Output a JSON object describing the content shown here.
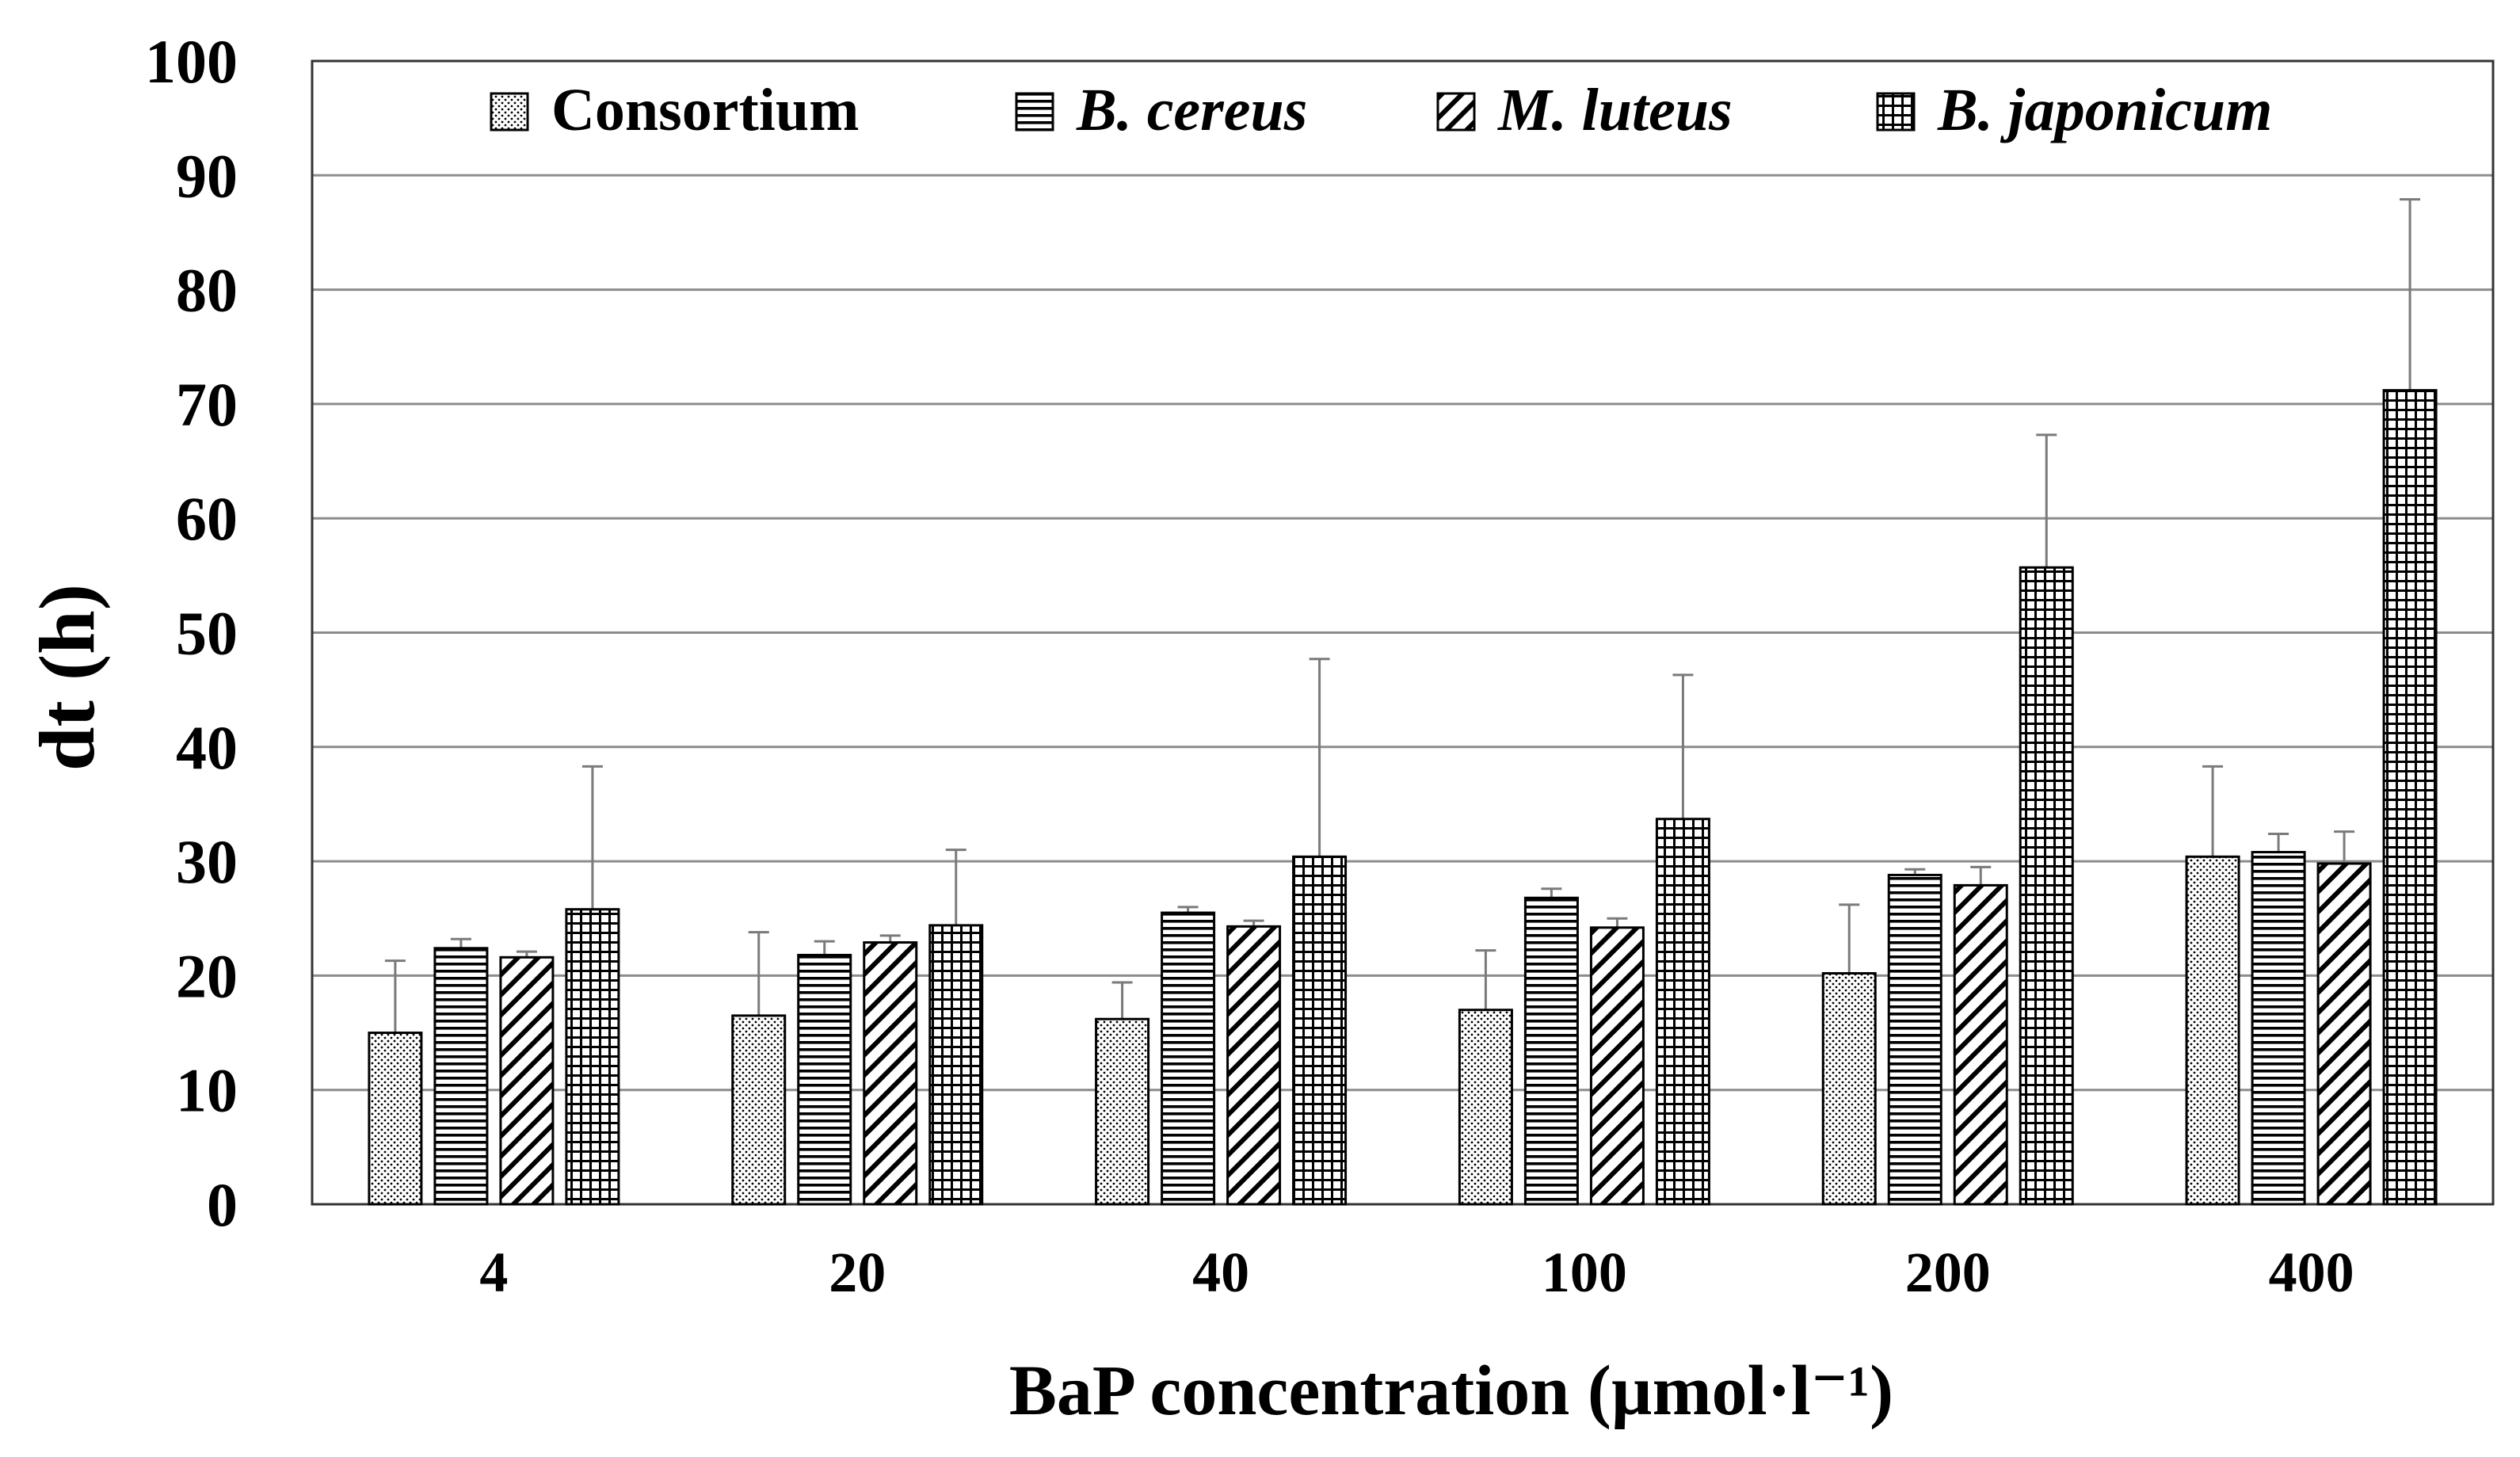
{
  "chart_data": {
    "type": "bar",
    "title": "",
    "xlabel": "BaP concentration (µmol·l⁻¹)",
    "ylabel": "dt (h)",
    "ylim": [
      0,
      100
    ],
    "yticks": [
      "0",
      "10",
      "20",
      "30",
      "40",
      "50",
      "60",
      "70",
      "80",
      "90",
      "100"
    ],
    "grid": true,
    "legend_position": "top",
    "categories": [
      "4",
      "20",
      "40",
      "100",
      "200",
      "400"
    ],
    "series": [
      {
        "name": "Consortium",
        "italic": false,
        "pattern": "dots",
        "values": [
          15.0,
          16.5,
          16.2,
          17.0,
          20.2,
          30.4
        ],
        "errors": [
          6.3,
          7.3,
          3.2,
          5.2,
          6.0,
          7.9
        ]
      },
      {
        "name": "B. cereus",
        "italic": true,
        "pattern": "horizontal-lines",
        "values": [
          22.4,
          21.8,
          25.5,
          26.8,
          28.8,
          30.8
        ],
        "errors": [
          0.8,
          1.2,
          0.5,
          0.8,
          0.5,
          1.6
        ]
      },
      {
        "name": "M. luteus",
        "italic": true,
        "pattern": "diagonal-lines",
        "values": [
          21.6,
          22.9,
          24.3,
          24.2,
          27.9,
          29.8
        ],
        "errors": [
          0.5,
          0.6,
          0.5,
          0.8,
          1.6,
          2.8
        ]
      },
      {
        "name": "B. japonicum",
        "italic": true,
        "pattern": "grid",
        "values": [
          25.8,
          24.4,
          30.4,
          33.7,
          55.7,
          71.2
        ],
        "errors": [
          12.5,
          6.6,
          17.3,
          12.6,
          11.6,
          16.7
        ]
      }
    ]
  },
  "colors": {
    "gridline": "#8c8c8c",
    "bar_stroke": "#000000",
    "error_bar": "#7a7a7a",
    "plot_border": "#333333"
  }
}
